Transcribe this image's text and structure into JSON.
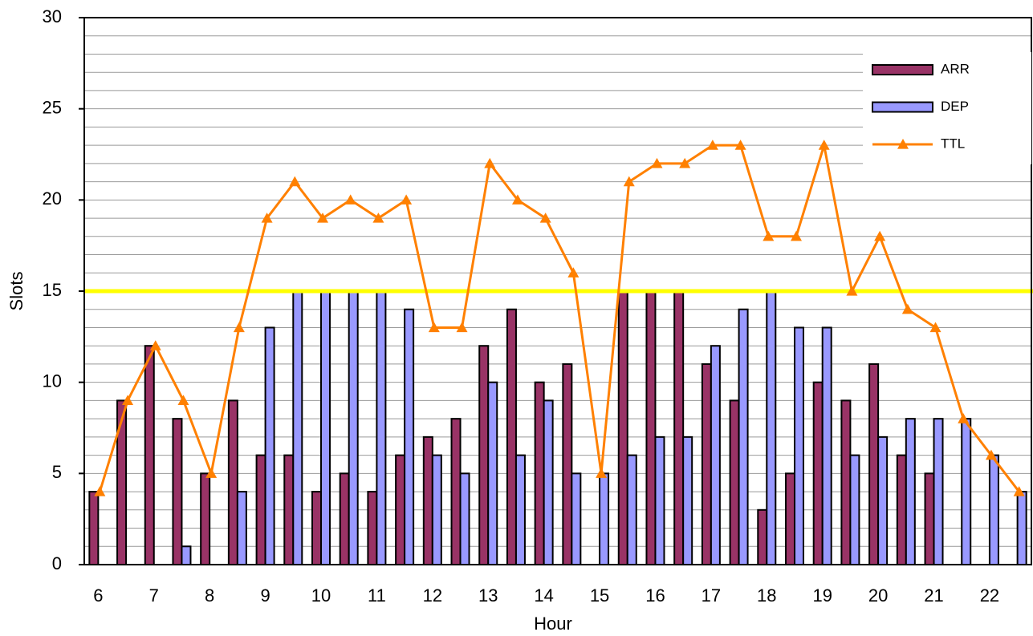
{
  "chart_data": {
    "type": "bar_line",
    "x_label": "Hour",
    "y_label": "Slots",
    "categories": [
      "6",
      null,
      "7",
      null,
      "8",
      null,
      "9",
      null,
      "10",
      null,
      "11",
      null,
      "12",
      null,
      "13",
      null,
      "14",
      null,
      "15",
      null,
      "16",
      null,
      "17",
      null,
      "18",
      null,
      "19",
      null,
      "20",
      null,
      "21",
      null,
      "22",
      null
    ],
    "series": [
      {
        "name": "ARR",
        "type": "bar",
        "color": "#993366",
        "values": [
          4,
          9,
          12,
          8,
          5,
          9,
          6,
          6,
          4,
          5,
          4,
          6,
          7,
          8,
          12,
          14,
          10,
          11,
          0,
          15,
          15,
          15,
          11,
          9,
          3,
          5,
          10,
          9,
          11,
          6,
          5,
          0,
          0,
          0
        ]
      },
      {
        "name": "DEP",
        "type": "bar",
        "color": "#9999ff",
        "values": [
          0,
          0,
          0,
          1,
          0,
          4,
          13,
          15,
          15,
          15,
          15,
          14,
          6,
          5,
          10,
          6,
          9,
          5,
          5,
          6,
          7,
          7,
          12,
          14,
          15,
          13,
          13,
          6,
          7,
          8,
          8,
          8,
          6,
          4
        ]
      },
      {
        "name": "TTL",
        "type": "line",
        "color": "#ff8000",
        "values": [
          4,
          9,
          12,
          9,
          5,
          13,
          19,
          21,
          19,
          20,
          19,
          20,
          13,
          13,
          22,
          20,
          19,
          16,
          5,
          21,
          22,
          22,
          23,
          23,
          18,
          18,
          23,
          15,
          18,
          14,
          13,
          8,
          6,
          4
        ]
      }
    ],
    "reference_line": {
      "value": 15,
      "color": "#ffff00"
    },
    "ylim": [
      0,
      30
    ],
    "yticks": [
      0,
      5,
      10,
      15,
      20,
      25,
      30
    ],
    "minor_yticks": [
      0,
      1,
      2,
      3,
      4,
      5,
      6,
      7,
      8,
      9,
      10,
      11,
      12,
      13,
      14,
      15,
      16,
      17,
      18,
      19,
      20,
      21,
      22,
      23,
      24,
      25,
      26,
      27,
      28,
      29,
      30
    ],
    "grid": true,
    "legend": "upper right"
  }
}
